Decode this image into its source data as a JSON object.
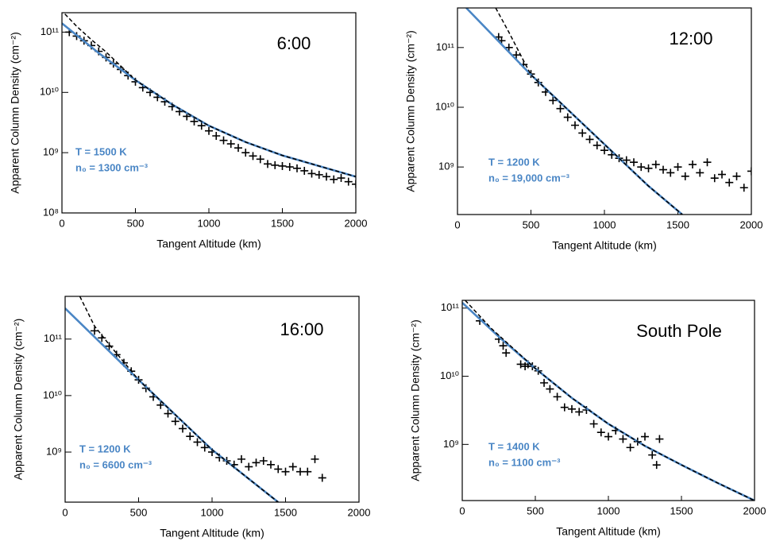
{
  "chart_data": [
    {
      "type": "scatter",
      "title": "6:00",
      "annotations": [
        "T = 1500 K",
        "n₀ = 1300 cm⁻³"
      ],
      "xlabel": "Tangent Altitude (km)",
      "ylabel": "Apparent Column Density (cm⁻²)",
      "xlim": [
        0,
        2000
      ],
      "xticks": [
        0,
        500,
        1000,
        1500,
        2000
      ],
      "ylog": true,
      "ylim": [
        100000000,
        210000000000
      ],
      "yticks": [
        {
          "value": 100000000,
          "label": "10⁸"
        },
        {
          "value": 1000000000,
          "label": "10⁹"
        },
        {
          "value": 10000000000,
          "label": "10¹⁰"
        },
        {
          "value": 100000000000,
          "label": "10¹¹"
        }
      ],
      "series": [
        {
          "style": "markers",
          "color": "#000000",
          "x": [
            50,
            100,
            150,
            200,
            250,
            300,
            350,
            400,
            450,
            500,
            550,
            600,
            650,
            700,
            750,
            800,
            850,
            900,
            950,
            1000,
            1050,
            1100,
            1150,
            1200,
            1250,
            1300,
            1350,
            1400,
            1450,
            1500,
            1550,
            1600,
            1650,
            1700,
            1750,
            1800,
            1850,
            1900,
            1950,
            2000
          ],
          "values": [
            100000000000.0,
            86000000000.0,
            72000000000.0,
            60000000000.0,
            48000000000.0,
            38000000000.0,
            30000000000.0,
            24000000000.0,
            19000000000.0,
            15000000000.0,
            12000000000.0,
            10000000000.0,
            8300000000.0,
            7000000000.0,
            5800000000.0,
            4800000000.0,
            4000000000.0,
            3300000000.0,
            2800000000.0,
            2300000000.0,
            1900000000.0,
            1600000000.0,
            1400000000.0,
            1200000000.0,
            1000000000.0,
            880000000.0,
            780000000.0,
            650000000.0,
            620000000.0,
            600000000.0,
            580000000.0,
            550000000.0,
            500000000.0,
            450000000.0,
            430000000.0,
            400000000.0,
            360000000.0,
            380000000.0,
            330000000.0,
            300000000.0
          ]
        },
        {
          "style": "solid",
          "color": "#4a86c5",
          "x": [
            0,
            250,
            500,
            750,
            1000,
            1250,
            1500,
            1750,
            2000
          ],
          "values": [
            140000000000.0,
            45000000000.0,
            16000000000.0,
            6300000000.0,
            2800000000.0,
            1500000000.0,
            900000000.0,
            600000000.0,
            400000000.0
          ]
        },
        {
          "style": "dashed",
          "color": "#000000",
          "x": [
            20,
            100,
            200,
            300,
            500,
            750,
            1000,
            1250,
            1500,
            1750,
            2000
          ],
          "values": [
            200000000000.0,
            125000000000.0,
            75000000000.0,
            47000000000.0,
            16000000000.0,
            6300000000.0,
            2800000000.0,
            1500000000.0,
            900000000.0,
            600000000.0,
            400000000.0
          ]
        }
      ]
    },
    {
      "type": "scatter",
      "title": "12:00",
      "annotations": [
        "T = 1200 K",
        "n₀ = 19,000 cm⁻³"
      ],
      "xlabel": "Tangent Altitude (km)",
      "ylabel": "Apparent Column Density (cm⁻²)",
      "xlim": [
        0,
        2000
      ],
      "xticks": [
        0,
        500,
        1000,
        1500,
        2000
      ],
      "ylog": true,
      "ylim": [
        160000000,
        460000000000
      ],
      "yticks": [
        {
          "value": 1000000000,
          "label": "10⁹"
        },
        {
          "value": 10000000000,
          "label": "10¹⁰"
        },
        {
          "value": 100000000000,
          "label": "10¹¹"
        }
      ],
      "series": [
        {
          "style": "markers",
          "color": "#000000",
          "x": [
            280,
            300,
            350,
            400,
            450,
            500,
            550,
            600,
            650,
            700,
            750,
            800,
            850,
            900,
            950,
            1000,
            1050,
            1100,
            1150,
            1200,
            1250,
            1300,
            1350,
            1400,
            1450,
            1500,
            1550,
            1600,
            1650,
            1700,
            1750,
            1800,
            1850,
            1900,
            1950,
            2000
          ],
          "values": [
            150000000000.0,
            130000000000.0,
            100000000000.0,
            75000000000.0,
            52000000000.0,
            36000000000.0,
            26000000000.0,
            18000000000.0,
            13000000000.0,
            9500000000.0,
            6800000000.0,
            5000000000.0,
            3700000000.0,
            2900000000.0,
            2300000000.0,
            1900000000.0,
            1600000000.0,
            1400000000.0,
            1300000000.0,
            1200000000.0,
            1000000000.0,
            950000000.0,
            1100000000.0,
            900000000.0,
            800000000.0,
            1000000000.0,
            700000000.0,
            1100000000.0,
            800000000.0,
            1200000000.0,
            650000000.0,
            750000000.0,
            550000000.0,
            700000000.0,
            450000000.0,
            850000000.0
          ]
        },
        {
          "style": "solid",
          "color": "#4a86c5",
          "x": [
            60,
            500,
            1000,
            1300,
            1530
          ],
          "values": [
            460000000000.0,
            35000000000.0,
            2400000000.0,
            480000000.0,
            160000000.0
          ]
        },
        {
          "style": "dashed",
          "color": "#000000",
          "x": [
            260,
            350,
            450,
            500,
            1000,
            1300,
            1530
          ],
          "values": [
            460000000000.0,
            180000000000.0,
            60000000000.0,
            35000000000.0,
            2400000000.0,
            480000000.0,
            160000000.0
          ]
        }
      ]
    },
    {
      "type": "scatter",
      "title": "16:00",
      "annotations": [
        "T = 1200 K",
        "n₀ = 6600 cm⁻³"
      ],
      "xlabel": "Tangent Altitude (km)",
      "ylabel": "Apparent Column Density (cm⁻²)",
      "xlim": [
        0,
        2000
      ],
      "xticks": [
        0,
        500,
        1000,
        1500,
        2000
      ],
      "ylog": true,
      "ylim": [
        130000000,
        570000000000
      ],
      "yticks": [
        {
          "value": 1000000000,
          "label": "10⁹"
        },
        {
          "value": 10000000000,
          "label": "10¹⁰"
        },
        {
          "value": 100000000000,
          "label": "10¹¹"
        }
      ],
      "series": [
        {
          "style": "markers",
          "color": "#000000",
          "x": [
            200,
            250,
            300,
            350,
            400,
            450,
            500,
            550,
            600,
            650,
            700,
            750,
            800,
            850,
            900,
            950,
            1000,
            1050,
            1100,
            1150,
            1200,
            1250,
            1300,
            1350,
            1400,
            1450,
            1500,
            1550,
            1600,
            1650,
            1700,
            1750
          ],
          "values": [
            140000000000.0,
            105000000000.0,
            75000000000.0,
            53000000000.0,
            38000000000.0,
            27000000000.0,
            19000000000.0,
            13500000000.0,
            9500000000.0,
            6800000000.0,
            4800000000.0,
            3500000000.0,
            2600000000.0,
            1900000000.0,
            1500000000.0,
            1200000000.0,
            1000000000.0,
            800000000.0,
            700000000.0,
            600000000.0,
            750000000.0,
            550000000.0,
            650000000.0,
            700000000.0,
            600000000.0,
            500000000.0,
            450000000.0,
            550000000.0,
            450000000.0,
            450000000.0,
            750000000.0,
            350000000.0
          ]
        },
        {
          "style": "solid",
          "color": "#4a86c5",
          "x": [
            0,
            500,
            1000,
            1450
          ],
          "values": [
            350000000000.0,
            19000000000.0,
            1100000000.0,
            130000000.0
          ]
        },
        {
          "style": "dashed",
          "color": "#000000",
          "x": [
            100,
            200,
            300,
            500,
            1000,
            1450
          ],
          "values": [
            570000000000.0,
            170000000000.0,
            80000000000.0,
            19000000000.0,
            1100000000.0,
            130000000.0
          ]
        }
      ]
    },
    {
      "type": "scatter",
      "title": "South Pole",
      "annotations": [
        "T = 1400 K",
        "n₀ = 1100 cm⁻³"
      ],
      "xlabel": "Tangent Altitude (km)",
      "ylabel": "Apparent Column Density (cm⁻²)",
      "xlim": [
        0,
        2000
      ],
      "xticks": [
        0,
        500,
        1000,
        1500,
        2000
      ],
      "ylog": true,
      "ylim": [
        150000000,
        130000000000
      ],
      "yticks": [
        {
          "value": 1000000000,
          "label": "10⁹"
        },
        {
          "value": 10000000000,
          "label": "10¹⁰"
        },
        {
          "value": 100000000000,
          "label": "10¹¹"
        }
      ],
      "series": [
        {
          "style": "markers",
          "color": "#000000",
          "x": [
            120,
            250,
            280,
            300,
            400,
            430,
            450,
            480,
            520,
            560,
            600,
            650,
            700,
            750,
            800,
            850,
            900,
            950,
            1000,
            1050,
            1100,
            1150,
            1200,
            1250,
            1300,
            1330,
            1350
          ],
          "values": [
            65000000000.0,
            35000000000.0,
            28000000000.0,
            22000000000.0,
            15000000000.0,
            14000000000.0,
            15000000000.0,
            14000000000.0,
            12000000000.0,
            8000000000.0,
            6500000000.0,
            5000000000.0,
            3500000000.0,
            3300000000.0,
            3000000000.0,
            3200000000.0,
            2000000000.0,
            1500000000.0,
            1300000000.0,
            1600000000.0,
            1200000000.0,
            900000000.0,
            1100000000.0,
            1300000000.0,
            700000000.0,
            500000000.0,
            1200000000.0
          ]
        },
        {
          "style": "solid",
          "color": "#4a86c5",
          "x": [
            0,
            250,
            500,
            750,
            1000,
            1250,
            1500,
            1750,
            2000
          ],
          "values": [
            120000000000.0,
            38000000000.0,
            13000000000.0,
            4800000000.0,
            2000000000.0,
            950000000.0,
            500000000.0,
            270000000.0,
            150000000.0
          ]
        },
        {
          "style": "dashed",
          "color": "#000000",
          "x": [
            20,
            100,
            200,
            500,
            750,
            1000,
            1250,
            1500,
            1750,
            2000
          ],
          "values": [
            130000000000.0,
            85000000000.0,
            50000000000.0,
            13000000000.0,
            4800000000.0,
            2000000000.0,
            950000000.0,
            500000000.0,
            270000000.0,
            150000000.0
          ]
        }
      ]
    }
  ]
}
